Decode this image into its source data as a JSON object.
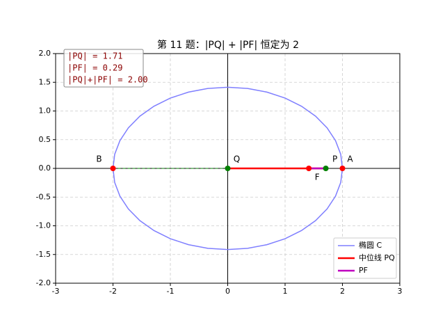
{
  "chart_data": {
    "type": "line",
    "title": "第 11 题：|PQ| + |PF| 恒定为 2",
    "xlim": [
      -3,
      3
    ],
    "ylim": [
      -2,
      2
    ],
    "xticks": [
      -3,
      -2,
      -1,
      0,
      1,
      2,
      3
    ],
    "yticks": [
      {
        "value": -2,
        "label": "-2.0"
      },
      {
        "value": -1.5,
        "label": "-1.5"
      },
      {
        "value": -1,
        "label": "-1.0"
      },
      {
        "value": -0.5,
        "label": "-0.5"
      },
      {
        "value": 0,
        "label": "0.0"
      },
      {
        "value": 0.5,
        "label": "0.5"
      },
      {
        "value": 1,
        "label": "1.0"
      },
      {
        "value": 1.5,
        "label": "1.5"
      },
      {
        "value": 2,
        "label": "2.0"
      }
    ],
    "grid": true,
    "legend": "lower right",
    "series": [
      {
        "name": "椭圆 C",
        "color": "#7f7fff",
        "width": 1.5,
        "x": [
          2,
          1.97,
          1.879,
          1.732,
          1.532,
          1.286,
          1,
          0.684,
          0.347,
          0,
          -0.347,
          -0.684,
          -1,
          -1.286,
          -1.532,
          -1.732,
          -1.879,
          -1.97,
          -2,
          -1.97,
          -1.879,
          -1.732,
          -1.532,
          -1.286,
          -1,
          -0.684,
          -0.347,
          0,
          0.347,
          0.684,
          1,
          1.286,
          1.532,
          1.732,
          1.879,
          1.97,
          2
        ],
        "values": [
          0,
          0.246,
          0.484,
          0.707,
          0.909,
          1.083,
          1.225,
          1.329,
          1.393,
          1.414,
          1.393,
          1.329,
          1.225,
          1.083,
          0.909,
          0.707,
          0.484,
          0.246,
          0,
          -0.246,
          -0.484,
          -0.707,
          -0.909,
          -1.083,
          -1.225,
          -1.329,
          -1.393,
          -1.414,
          -1.393,
          -1.329,
          -1.225,
          -1.083,
          -0.909,
          -0.707,
          -0.484,
          -0.246,
          0
        ]
      },
      {
        "name": "中位线 PQ",
        "color": "#ff0000",
        "width": 2.5,
        "x": [
          0,
          1.71
        ],
        "values": [
          0,
          0
        ]
      },
      {
        "name": "PF",
        "color": "#bf00bf",
        "width": 2.5,
        "x": [
          1.414,
          1.71
        ],
        "values": [
          0,
          0
        ]
      },
      {
        "color": "#008000",
        "width": 1,
        "dashed": true,
        "x": [
          -2,
          0
        ],
        "values": [
          0,
          0
        ]
      }
    ],
    "points": [
      {
        "label": "B",
        "x": -2,
        "y": 0,
        "color": "#ff0000"
      },
      {
        "label": "A",
        "x": 2,
        "y": 0,
        "color": "#ff0000"
      },
      {
        "label": "F",
        "x": 1.414,
        "y": 0,
        "color": "#ff0000"
      },
      {
        "label": "Q",
        "x": 0,
        "y": 0,
        "color": "#008000"
      },
      {
        "label": "P",
        "x": 1.71,
        "y": 0,
        "color": "#008000"
      }
    ],
    "info": [
      "|PQ| = 1.71",
      "|PF| = 0.29",
      "|PQ|+|PF| = 2.00"
    ]
  }
}
